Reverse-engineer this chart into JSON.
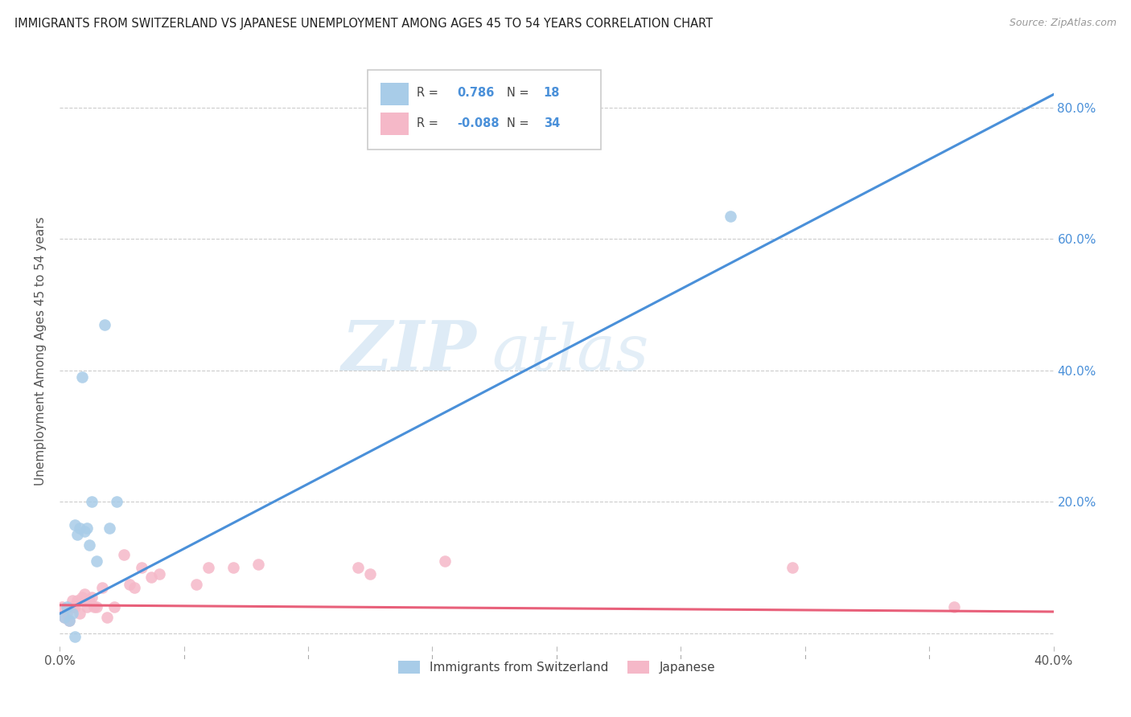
{
  "title": "IMMIGRANTS FROM SWITZERLAND VS JAPANESE UNEMPLOYMENT AMONG AGES 45 TO 54 YEARS CORRELATION CHART",
  "source": "Source: ZipAtlas.com",
  "ylabel": "Unemployment Among Ages 45 to 54 years",
  "xlim": [
    0.0,
    0.4
  ],
  "ylim": [
    -0.02,
    0.88
  ],
  "xticks": [
    0.0,
    0.05,
    0.1,
    0.15,
    0.2,
    0.25,
    0.3,
    0.35,
    0.4
  ],
  "xtick_labels": [
    "0.0%",
    "",
    "",
    "",
    "",
    "",
    "",
    "",
    "40.0%"
  ],
  "yticks": [
    0.0,
    0.2,
    0.4,
    0.6,
    0.8
  ],
  "ytick_labels_right": [
    "",
    "20.0%",
    "40.0%",
    "60.0%",
    "80.0%"
  ],
  "blue_R": 0.786,
  "blue_N": 18,
  "pink_R": -0.088,
  "pink_N": 34,
  "blue_color": "#a8cce8",
  "pink_color": "#f5b8c8",
  "blue_line_color": "#4a90d9",
  "pink_line_color": "#e8607a",
  "legend_label_blue": "Immigrants from Switzerland",
  "legend_label_pink": "Japanese",
  "watermark_zip": "ZIP",
  "watermark_atlas": "atlas",
  "blue_scatter_x": [
    0.002,
    0.003,
    0.004,
    0.005,
    0.006,
    0.007,
    0.008,
    0.009,
    0.01,
    0.011,
    0.012,
    0.013,
    0.015,
    0.018,
    0.02,
    0.023,
    0.27,
    0.006
  ],
  "blue_scatter_y": [
    0.025,
    0.04,
    0.02,
    0.03,
    0.165,
    0.15,
    0.16,
    0.39,
    0.155,
    0.16,
    0.135,
    0.2,
    0.11,
    0.47,
    0.16,
    0.2,
    0.635,
    -0.005
  ],
  "pink_scatter_x": [
    0.001,
    0.002,
    0.003,
    0.004,
    0.005,
    0.005,
    0.006,
    0.007,
    0.008,
    0.009,
    0.01,
    0.011,
    0.012,
    0.013,
    0.014,
    0.015,
    0.017,
    0.019,
    0.022,
    0.026,
    0.028,
    0.03,
    0.033,
    0.037,
    0.04,
    0.055,
    0.06,
    0.07,
    0.08,
    0.12,
    0.125,
    0.155,
    0.295,
    0.36
  ],
  "pink_scatter_y": [
    0.04,
    0.025,
    0.03,
    0.02,
    0.05,
    0.04,
    0.04,
    0.05,
    0.03,
    0.055,
    0.06,
    0.04,
    0.05,
    0.055,
    0.04,
    0.04,
    0.07,
    0.025,
    0.04,
    0.12,
    0.075,
    0.07,
    0.1,
    0.085,
    0.09,
    0.075,
    0.1,
    0.1,
    0.105,
    0.1,
    0.09,
    0.11,
    0.1,
    0.04
  ],
  "blue_line_x": [
    0.0,
    0.4
  ],
  "blue_line_y": [
    0.03,
    0.82
  ],
  "pink_line_x": [
    0.0,
    0.4
  ],
  "pink_line_y": [
    0.043,
    0.033
  ],
  "background_color": "#ffffff",
  "grid_color": "#cccccc"
}
